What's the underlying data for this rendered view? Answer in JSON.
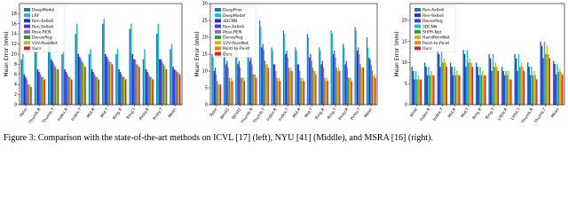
{
  "chart_data": [
    {
      "type": "bar",
      "y_label": "Mean Error (mm)",
      "legend": "upper left",
      "grid": false,
      "categories": [
        "Palm",
        "Thumb.R",
        "Thumb.T",
        "Index.R",
        "Index.T",
        "Mid.R",
        "Mid.T",
        "Ring.R",
        "Ring.T",
        "Pinky.R",
        "Pinky.T",
        "Mean"
      ],
      "ylim": [
        0,
        20
      ],
      "yticks": [
        0,
        2,
        4,
        6,
        8,
        10,
        12,
        14,
        16,
        18
      ],
      "series": [
        {
          "name": "DeepModel",
          "color": "#1f77b4",
          "values": [
            9,
            11,
            13,
            10,
            14,
            10,
            16,
            10,
            15,
            9,
            14,
            11
          ]
        },
        {
          "name": "LRF",
          "color": "#17becf",
          "values": [
            10,
            11,
            13,
            11,
            16,
            11,
            17,
            11,
            16,
            11,
            16,
            12
          ]
        },
        {
          "name": "Ren-4x6x6",
          "color": "#2233aa",
          "values": [
            6,
            7,
            9,
            7,
            10,
            7,
            10,
            7,
            10,
            7,
            9,
            7.5
          ]
        },
        {
          "name": "Ren-9x6x6",
          "color": "#3a3aff",
          "values": [
            5.5,
            6.5,
            8.5,
            6.5,
            9.5,
            6.5,
            9.5,
            6.5,
            9,
            6.5,
            9,
            7
          ]
        },
        {
          "name": "Pose-REN",
          "color": "#9467bd",
          "values": [
            5,
            6,
            8,
            6,
            9,
            6,
            9,
            6,
            9,
            6,
            8.5,
            6.8
          ]
        },
        {
          "name": "DenseReg",
          "color": "#2ca02c",
          "values": [
            4,
            5.5,
            7.5,
            5.5,
            8.5,
            5.5,
            8.5,
            5.5,
            8,
            5.5,
            8,
            6.5
          ]
        },
        {
          "name": "V2V-PoseNet",
          "color": "#bcbd22",
          "values": [
            4,
            5.5,
            7,
            5.5,
            8,
            5.5,
            8.5,
            5.5,
            8,
            5.5,
            7.5,
            6.3
          ]
        },
        {
          "name": "Ours",
          "color": "#d62728",
          "values": [
            3.5,
            5,
            7,
            5,
            7.5,
            5,
            8,
            5,
            7.5,
            5,
            7,
            6
          ]
        }
      ]
    },
    {
      "type": "bar",
      "y_label": "Mean Error (mm)",
      "legend": "upper left",
      "grid": false,
      "categories": [
        "Palm",
        "Wrist1",
        "Wrist2",
        "Thumb.R",
        "Thumb.T",
        "Index.R",
        "Index.T",
        "Mid.R",
        "Mid.T",
        "Ring.R",
        "Ring.T",
        "Pinky.R",
        "Pinky.T",
        "Mean"
      ],
      "ylim": [
        0,
        30
      ],
      "yticks": [
        0,
        5,
        10,
        15,
        20,
        25,
        30
      ],
      "series": [
        {
          "name": "DeepPrior",
          "color": "#1f77b4",
          "values": [
            15,
            18,
            17,
            19,
            25,
            17,
            22,
            17,
            21,
            17,
            22,
            18,
            23,
            20
          ]
        },
        {
          "name": "DeepModel",
          "color": "#17becf",
          "values": [
            14,
            17,
            18,
            18,
            23,
            16,
            21,
            16,
            20,
            16,
            21,
            17,
            22,
            17
          ]
        },
        {
          "name": "3DCNN",
          "color": "#2233aa",
          "values": [
            10,
            12,
            12,
            13,
            17,
            12,
            15,
            12,
            14,
            12,
            15,
            12,
            16,
            14
          ]
        },
        {
          "name": "Ren-4x6x6",
          "color": "#3a3aff",
          "values": [
            11,
            13,
            13,
            14,
            18,
            12,
            16,
            12,
            15,
            13,
            16,
            13,
            17,
            13.4
          ]
        },
        {
          "name": "Pose-REN",
          "color": "#9467bd",
          "values": [
            9,
            11,
            11,
            12,
            16,
            10,
            14,
            10,
            13,
            11,
            14,
            11,
            15,
            11.8
          ]
        },
        {
          "name": "DenseReg",
          "color": "#2ca02c",
          "values": [
            7,
            8,
            8,
            9,
            13,
            8,
            11,
            8,
            11,
            8,
            11,
            8,
            12,
            10.2
          ]
        },
        {
          "name": "V2V-PoseNet",
          "color": "#bcbd22",
          "values": [
            6,
            7,
            8,
            9,
            12,
            7,
            10,
            7,
            10,
            7,
            10,
            8,
            11,
            8.4
          ]
        },
        {
          "name": "Point-to-Point",
          "color": "#ff7f0e",
          "values": [
            6,
            8,
            8,
            9,
            12,
            8,
            11,
            8,
            10,
            8,
            11,
            8,
            11,
            9
          ]
        },
        {
          "name": "Ours",
          "color": "#d62728",
          "values": [
            6,
            7,
            7,
            8,
            11,
            7,
            10,
            7,
            9,
            7,
            10,
            7,
            11,
            8
          ]
        }
      ]
    },
    {
      "type": "bar",
      "y_label": "Mean Error (mm)",
      "legend": "upper left",
      "grid": false,
      "categories": [
        "Wrist",
        "Index.R",
        "Index.T",
        "Mid.R",
        "Mid.T",
        "Ring.R",
        "Ring.T",
        "Little.R",
        "Little.T",
        "Thumb.R",
        "Thumb.T",
        "Mean"
      ],
      "ylim": [
        0,
        24
      ],
      "yticks": [
        0,
        5,
        10,
        15,
        20
      ],
      "series": [
        {
          "name": "Ren-4x6x6",
          "color": "#1f77b4",
          "values": [
            9,
            10,
            13,
            10,
            13,
            10,
            12,
            9,
            12,
            10,
            15,
            10.4
          ]
        },
        {
          "name": "Ren-9x6x6",
          "color": "#2233aa",
          "values": [
            8,
            9,
            12,
            9,
            12,
            9,
            11,
            8,
            11,
            9,
            14,
            9.7
          ]
        },
        {
          "name": "DenseReg",
          "color": "#3a3aff",
          "values": [
            6,
            7,
            9,
            7,
            9,
            7,
            8,
            7,
            8,
            7,
            11,
            7.2
          ]
        },
        {
          "name": "3DCNN",
          "color": "#17becf",
          "values": [
            8,
            9,
            13,
            9,
            13,
            9,
            12,
            8,
            12,
            9,
            15,
            9.6
          ]
        },
        {
          "name": "SHPR-Net",
          "color": "#2ca02c",
          "values": [
            6,
            7,
            10,
            7,
            10,
            7,
            9,
            7,
            9,
            7,
            12,
            7.8
          ]
        },
        {
          "name": "HandPointNet",
          "color": "#bcbd22",
          "values": [
            7,
            8,
            11,
            8,
            11,
            8,
            10,
            8,
            10,
            8,
            14,
            8.5
          ]
        },
        {
          "name": "Point-to-Point",
          "color": "#ff7f0e",
          "values": [
            6,
            7,
            10,
            7,
            10,
            7,
            9,
            6,
            9,
            7,
            12,
            7.7
          ]
        },
        {
          "name": "Ours",
          "color": "#d62728",
          "values": [
            6,
            7,
            9,
            7,
            9,
            7,
            8,
            6,
            8,
            6,
            11,
            7.1
          ]
        }
      ]
    }
  ],
  "caption": "Figure 3: Comparison with the state-of-the-art methods on ICVL [17] (left), NYU [41] (Middle), and MSRA [16] (right)."
}
